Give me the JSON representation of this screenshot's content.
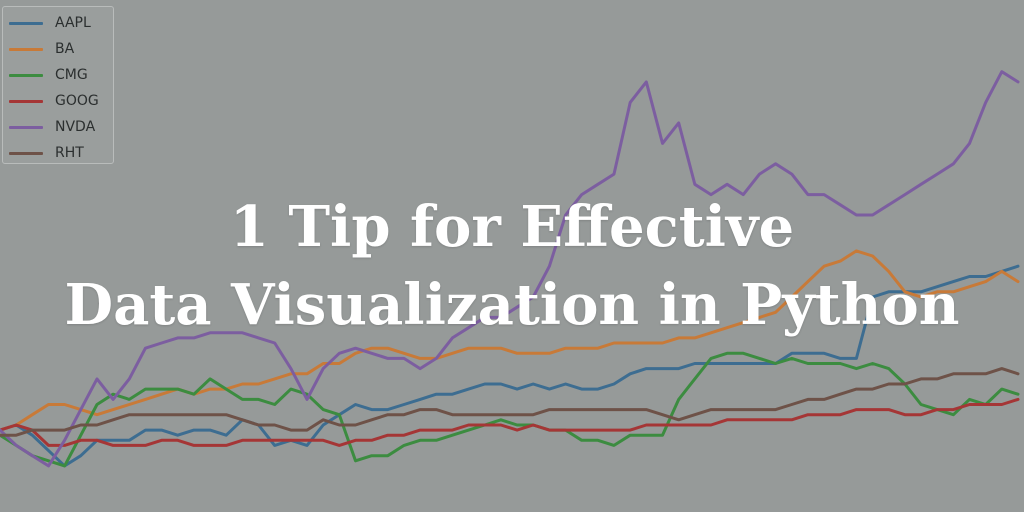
{
  "title": {
    "line1": "1 Tip for Effective",
    "line2": "Data Visualization in Python"
  },
  "colors": {
    "background": "#969a99",
    "title": "#ffffff"
  },
  "chart_data": {
    "type": "line",
    "title": "",
    "xlabel": "",
    "ylabel": "",
    "grid": false,
    "legend_position": "top-left",
    "x": [
      0,
      1,
      2,
      3,
      4,
      5,
      6,
      7,
      8,
      9,
      10,
      11,
      12,
      13,
      14,
      15,
      16,
      17,
      18,
      19,
      20,
      21,
      22,
      23,
      24,
      25,
      26,
      27,
      28,
      29,
      30,
      31,
      32,
      33,
      34,
      35,
      36,
      37,
      38,
      39,
      40,
      41,
      42,
      43,
      44,
      45,
      46,
      47,
      48,
      49,
      50,
      51,
      52,
      53,
      54,
      55,
      56,
      57,
      58,
      59,
      60,
      61,
      62,
      63
    ],
    "ylim": [
      0,
      100
    ],
    "series": [
      {
        "name": "AAPL",
        "color": "#3d6d91",
        "values": [
          16,
          17,
          15,
          12,
          9,
          11,
          14,
          14,
          14,
          16,
          16,
          15,
          16,
          16,
          15,
          18,
          17,
          13,
          14,
          13,
          17,
          19,
          21,
          20,
          20,
          21,
          22,
          23,
          23,
          24,
          25,
          25,
          24,
          25,
          24,
          25,
          24,
          24,
          25,
          27,
          28,
          28,
          28,
          29,
          29,
          29,
          29,
          29,
          29,
          31,
          31,
          31,
          30,
          30,
          42,
          43,
          43,
          43,
          44,
          45,
          46,
          46,
          47,
          48
        ]
      },
      {
        "name": "BA",
        "color": "#c87a38",
        "values": [
          16,
          17,
          19,
          21,
          21,
          20,
          19,
          20,
          21,
          22,
          23,
          24,
          23,
          24,
          24,
          25,
          25,
          26,
          27,
          27,
          29,
          29,
          31,
          32,
          32,
          31,
          30,
          30,
          31,
          32,
          32,
          32,
          31,
          31,
          31,
          32,
          32,
          32,
          33,
          33,
          33,
          33,
          34,
          34,
          35,
          36,
          37,
          38,
          39,
          42,
          45,
          48,
          49,
          51,
          50,
          47,
          43,
          42,
          43,
          43,
          44,
          45,
          47,
          45
        ]
      },
      {
        "name": "CMG",
        "color": "#3c8c40",
        "values": [
          15,
          13,
          11,
          10,
          9,
          15,
          21,
          23,
          22,
          24,
          24,
          24,
          23,
          26,
          24,
          22,
          22,
          21,
          24,
          23,
          20,
          19,
          10,
          11,
          11,
          13,
          14,
          14,
          15,
          16,
          17,
          18,
          17,
          17,
          16,
          16,
          14,
          14,
          13,
          15,
          15,
          15,
          22,
          26,
          30,
          31,
          31,
          30,
          29,
          30,
          29,
          29,
          29,
          28,
          29,
          28,
          25,
          21,
          20,
          19,
          22,
          21,
          24,
          23
        ]
      },
      {
        "name": "GOOG",
        "color": "#a53636",
        "values": [
          16,
          17,
          16,
          13,
          13,
          14,
          14,
          13,
          13,
          13,
          14,
          14,
          13,
          13,
          13,
          14,
          14,
          14,
          14,
          14,
          14,
          13,
          14,
          14,
          15,
          15,
          16,
          16,
          16,
          17,
          17,
          17,
          16,
          17,
          16,
          16,
          16,
          16,
          16,
          16,
          17,
          17,
          17,
          17,
          17,
          18,
          18,
          18,
          18,
          18,
          19,
          19,
          19,
          20,
          20,
          20,
          19,
          19,
          20,
          20,
          21,
          21,
          21,
          22
        ]
      },
      {
        "name": "NVDA",
        "color": "#7c5ea0",
        "values": [
          16,
          13,
          11,
          9,
          14,
          20,
          26,
          22,
          26,
          32,
          33,
          34,
          34,
          35,
          35,
          35,
          34,
          33,
          28,
          22,
          28,
          31,
          32,
          31,
          30,
          30,
          28,
          30,
          34,
          36,
          38,
          38,
          40,
          42,
          48,
          58,
          62,
          64,
          66,
          80,
          84,
          72,
          76,
          64,
          62,
          64,
          62,
          66,
          68,
          66,
          62,
          62,
          60,
          58,
          58,
          60,
          62,
          64,
          66,
          68,
          72,
          80,
          86,
          84
        ]
      },
      {
        "name": "RHT",
        "color": "#6e5248",
        "values": [
          15,
          15,
          16,
          16,
          16,
          17,
          17,
          18,
          19,
          19,
          19,
          19,
          19,
          19,
          19,
          18,
          17,
          17,
          16,
          16,
          18,
          17,
          17,
          18,
          19,
          19,
          20,
          20,
          19,
          19,
          19,
          19,
          19,
          19,
          20,
          20,
          20,
          20,
          20,
          20,
          20,
          19,
          18,
          19,
          20,
          20,
          20,
          20,
          20,
          21,
          22,
          22,
          23,
          24,
          24,
          25,
          25,
          26,
          26,
          27,
          27,
          27,
          28,
          27
        ]
      }
    ]
  }
}
